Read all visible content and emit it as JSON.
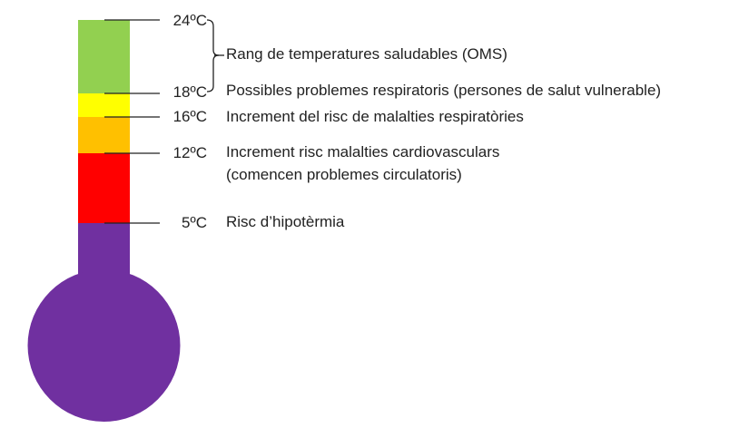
{
  "thermometer": {
    "colors": {
      "green": "#92D050",
      "yellow": "#FFFF00",
      "orange": "#FFC000",
      "red": "#FF0000",
      "purple": "#7030A0",
      "tick": "#222222"
    },
    "ticks": [
      {
        "temp": "24ºC"
      },
      {
        "temp": "18ºC"
      },
      {
        "temp": "16ºC"
      },
      {
        "temp": "12ºC"
      },
      {
        "temp": "5ºC"
      }
    ]
  },
  "labels": {
    "healthy_range": "Rang de temperatures saludables (OMS)",
    "t18": "Possibles problemes respiratoris (persones de salut vulnerable)",
    "t16": "Increment del risc de malalties respiratòries",
    "t12_line1": "Increment risc malalties cardiovasculars",
    "t12_line2": "(comencen problemes circulatoris)",
    "t5": "Risc d’hipotèrmia"
  }
}
